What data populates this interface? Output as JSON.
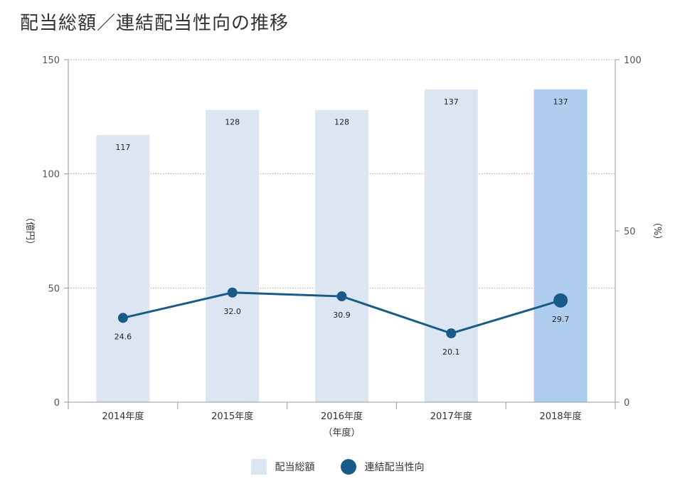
{
  "title": "配当総額／連結配当性向の推移",
  "chart_data": {
    "type": "bar+line",
    "categories": [
      "2014年度",
      "2015年度",
      "2016年度",
      "2017年度",
      "2018年度"
    ],
    "xlabel": "（年度）",
    "ylabel_left": "（億円）",
    "ylabel_right": "（%）",
    "ylim_left": [
      0,
      150
    ],
    "ylim_right": [
      0,
      100
    ],
    "yticks_left": [
      0,
      50,
      100,
      150
    ],
    "yticks_right": [
      0,
      50,
      100
    ],
    "grid": true,
    "legend_position": "bottom",
    "series": [
      {
        "name": "配当総額",
        "type": "bar",
        "axis": "left",
        "values": [
          117,
          128,
          128,
          137,
          137
        ],
        "labels": [
          "117",
          "128",
          "128",
          "137",
          "137"
        ],
        "color": "#dce6f2",
        "highlight_color": "#afcdef"
      },
      {
        "name": "連結配当性向",
        "type": "line",
        "axis": "right",
        "values": [
          24.6,
          32.0,
          30.9,
          20.1,
          29.7
        ],
        "labels": [
          "24.6",
          "32.0",
          "30.9",
          "20.1",
          "29.7"
        ],
        "color": "#1a5a86"
      }
    ]
  }
}
